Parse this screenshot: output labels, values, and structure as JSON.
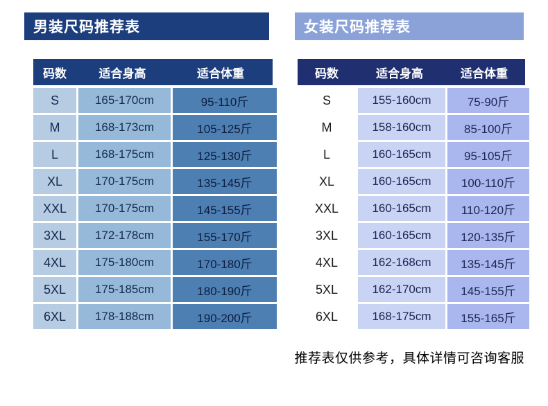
{
  "colors": {
    "men_accent": "#1c3e7d",
    "men_col1": "#b5cce3",
    "men_col2": "#96b9da",
    "men_col3": "#4e7fb3",
    "women_banner": "#8ba2d8",
    "women_header": "#1f2f70",
    "women_col2": "#c9d3f4",
    "women_col3": "#a9b7ee"
  },
  "footer": {
    "note": "推荐表仅供参考，具体详情可咨询客服"
  },
  "chart_data": [
    {
      "type": "table",
      "title": "男装尺码推荐表",
      "columns": [
        "码数",
        "适合身高",
        "适合体重"
      ],
      "rows": [
        [
          "S",
          "165-170cm",
          "95-110斤"
        ],
        [
          "M",
          "168-173cm",
          "105-125斤"
        ],
        [
          "L",
          "168-175cm",
          "125-130斤"
        ],
        [
          "XL",
          "170-175cm",
          "135-145斤"
        ],
        [
          "XXL",
          "170-175cm",
          "145-155斤"
        ],
        [
          "3XL",
          "172-178cm",
          "155-170斤"
        ],
        [
          "4XL",
          "175-180cm",
          "170-180斤"
        ],
        [
          "5XL",
          "175-185cm",
          "180-190斤"
        ],
        [
          "6XL",
          "178-188cm",
          "190-200斤"
        ]
      ]
    },
    {
      "type": "table",
      "title": "女装尺码推荐表",
      "columns": [
        "码数",
        "适合身高",
        "适合体重"
      ],
      "rows": [
        [
          "S",
          "155-160cm",
          "75-90斤"
        ],
        [
          "M",
          "158-160cm",
          "85-100斤"
        ],
        [
          "L",
          "160-165cm",
          "95-105斤"
        ],
        [
          "XL",
          "160-165cm",
          "100-110斤"
        ],
        [
          "XXL",
          "160-165cm",
          "110-120斤"
        ],
        [
          "3XL",
          "160-165cm",
          "120-135斤"
        ],
        [
          "4XL",
          "162-168cm",
          "135-145斤"
        ],
        [
          "5XL",
          "162-170cm",
          "145-155斤"
        ],
        [
          "6XL",
          "168-175cm",
          "155-165斤"
        ]
      ]
    }
  ]
}
